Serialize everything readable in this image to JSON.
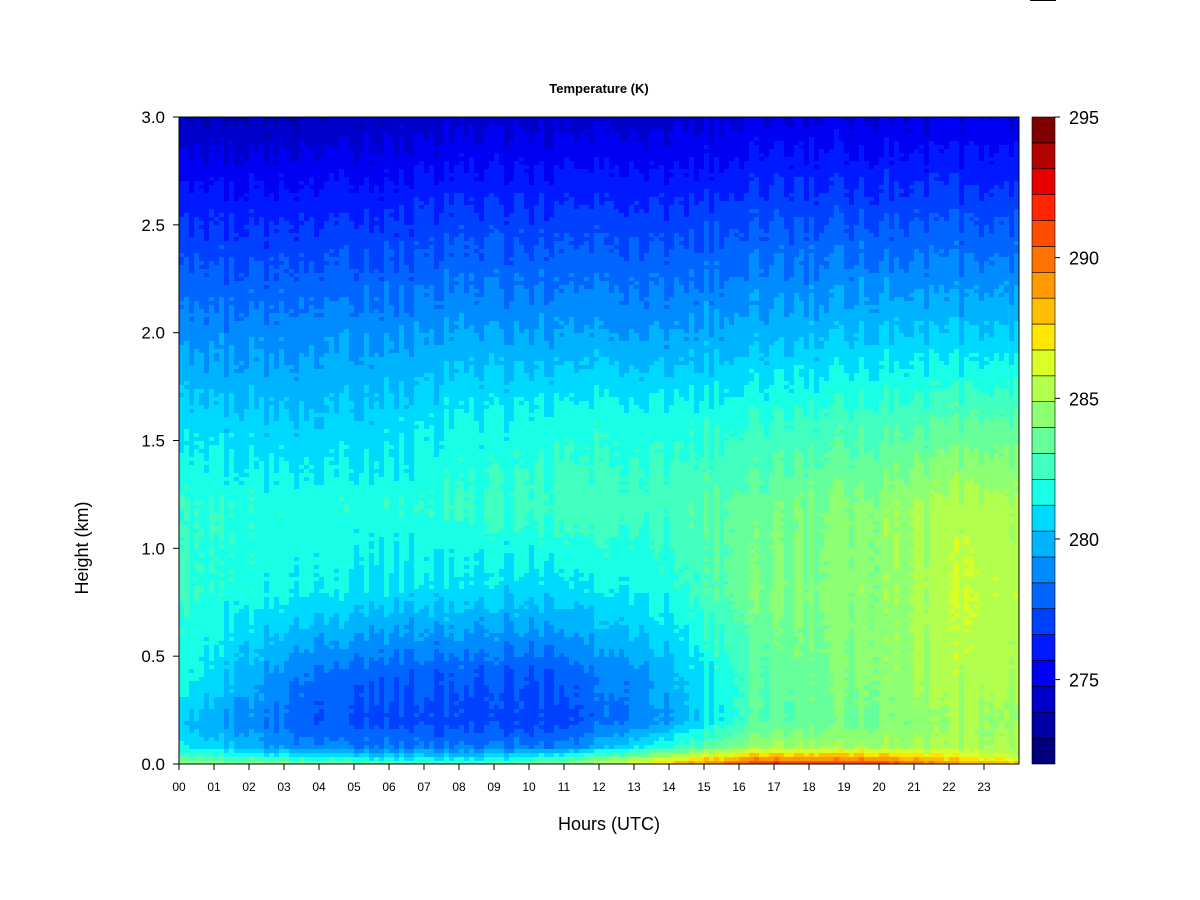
{
  "chart_data": {
    "type": "heatmap",
    "title": "Temperature (K)",
    "xlabel": "Hours (UTC)",
    "ylabel": "Height (km)",
    "x_ticks": [
      "00",
      "01",
      "02",
      "03",
      "04",
      "05",
      "06",
      "07",
      "08",
      "09",
      "10",
      "11",
      "12",
      "13",
      "14",
      "15",
      "16",
      "17",
      "18",
      "19",
      "20",
      "21",
      "22",
      "23"
    ],
    "xlim": [
      0,
      24
    ],
    "y_ticks": [
      "0.0",
      "0.5",
      "1.0",
      "1.5",
      "2.0",
      "2.5",
      "3.0"
    ],
    "ylim": [
      0,
      3.0
    ],
    "colorbar": {
      "ticks": [
        "275",
        "280",
        "285",
        "290",
        "295"
      ],
      "range": [
        272,
        295
      ],
      "step": 1,
      "colors": [
        "#00007f",
        "#0000a6",
        "#0000cc",
        "#0000f2",
        "#0019ff",
        "#0040ff",
        "#0066ff",
        "#008cff",
        "#00b3ff",
        "#00d9ff",
        "#19ffe6",
        "#40ffbf",
        "#66ff99",
        "#8cff73",
        "#b3ff4d",
        "#d9ff26",
        "#ffe600",
        "#ffbf00",
        "#ff9900",
        "#ff7300",
        "#ff4d00",
        "#ff2600",
        "#e60000",
        "#b30000",
        "#7f0000"
      ]
    },
    "profiles": [
      {
        "hour": 0,
        "heights": [
          0,
          0.03,
          0.08,
          0.2,
          0.4,
          0.8,
          1.2,
          1.6,
          2.0,
          2.5,
          3.0
        ],
        "temps": [
          286,
          284,
          282,
          281,
          282.5,
          283,
          283,
          281.5,
          279.5,
          277,
          274
        ]
      },
      {
        "hour": 4,
        "heights": [
          0,
          0.03,
          0.08,
          0.2,
          0.4,
          0.8,
          1.2,
          1.6,
          2.0,
          2.5,
          3.0
        ],
        "temps": [
          285,
          282,
          279,
          278,
          278.5,
          282,
          282.5,
          281,
          279.5,
          277,
          274
        ]
      },
      {
        "hour": 8,
        "heights": [
          0,
          0.03,
          0.08,
          0.2,
          0.4,
          0.8,
          1.2,
          1.6,
          2.0,
          2.5,
          3.0
        ],
        "temps": [
          284,
          281,
          279,
          277.5,
          278,
          281.5,
          283,
          282,
          280,
          277.5,
          274.5
        ]
      },
      {
        "hour": 11,
        "heights": [
          0,
          0.03,
          0.08,
          0.2,
          0.4,
          0.8,
          1.2,
          1.6,
          2.0,
          2.5,
          3.0
        ],
        "temps": [
          285,
          283,
          279,
          277.5,
          278,
          281.5,
          283.5,
          282.5,
          280,
          277.5,
          274.5
        ]
      },
      {
        "hour": 14,
        "heights": [
          0,
          0.03,
          0.08,
          0.2,
          0.4,
          0.8,
          1.2,
          1.6,
          2.0,
          2.5,
          3.0
        ],
        "temps": [
          289,
          287,
          283,
          280,
          280.5,
          282.5,
          283.5,
          282.5,
          280,
          277.5,
          274.5
        ]
      },
      {
        "hour": 16.5,
        "heights": [
          0,
          0.03,
          0.08,
          0.2,
          0.4,
          0.8,
          1.2,
          1.6,
          2.0,
          2.5,
          3.0
        ],
        "temps": [
          293,
          290,
          286,
          284,
          284,
          285,
          284.5,
          283,
          280.5,
          278,
          275
        ]
      },
      {
        "hour": 20,
        "heights": [
          0,
          0.03,
          0.08,
          0.2,
          0.4,
          0.8,
          1.2,
          1.6,
          2.0,
          2.5,
          3.0
        ],
        "temps": [
          293,
          290,
          286,
          285,
          285.5,
          285.5,
          285.5,
          283.5,
          281,
          278,
          275
        ]
      },
      {
        "hour": 22.5,
        "heights": [
          0,
          0.03,
          0.08,
          0.2,
          0.4,
          0.8,
          1.2,
          1.6,
          2.0,
          2.5,
          3.0
        ],
        "temps": [
          290,
          288,
          286,
          286,
          286.5,
          287,
          286.5,
          284,
          281,
          278,
          275
        ]
      },
      {
        "hour": 24,
        "heights": [
          0,
          0.03,
          0.08,
          0.2,
          0.4,
          0.8,
          1.2,
          1.6,
          2.0,
          2.5,
          3.0
        ],
        "temps": [
          289,
          287,
          286,
          285.5,
          286,
          286.5,
          286,
          284,
          281,
          278,
          275
        ]
      }
    ]
  }
}
